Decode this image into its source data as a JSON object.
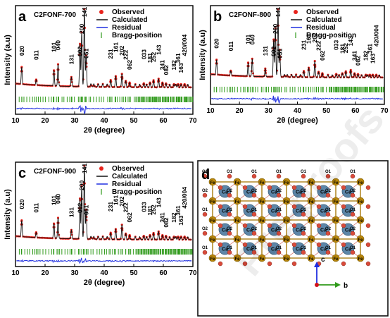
{
  "figure": {
    "watermark": "Pre-proofs",
    "colors": {
      "observed": "#e8231c",
      "calculated": "#111111",
      "residual": "#1f2fe0",
      "bragg": "#2f9a1a",
      "fe": "#b8860b",
      "ca": "#5d86a8",
      "o": "#d84a3a",
      "bond": "#b38a2a"
    }
  },
  "panels": [
    {
      "letter": "a",
      "sample": "C2FONF-700",
      "legend": [
        "Observed",
        "Calculated",
        "Residual",
        "Bragg-position"
      ],
      "ylabel": "Intensity (a.u)",
      "xlabel": "2θ (degree)",
      "xticks": [
        "10",
        "20",
        "30",
        "40",
        "50",
        "60",
        "70"
      ]
    },
    {
      "letter": "b",
      "sample": "C2FONF-800",
      "legend": [
        "Observed",
        "Calculated",
        "Residual",
        "Bragg-position"
      ],
      "ylabel": "Intensity (a.u)",
      "xlabel": "2θ (degree)",
      "xticks": [
        "10",
        "20",
        "30",
        "40",
        "50",
        "60",
        "70"
      ]
    },
    {
      "letter": "c",
      "sample": "C2FONF-900",
      "legend": [
        "Observed",
        "Calculated",
        "Residual",
        "Bragg-position"
      ],
      "ylabel": "Intensity (a.u)",
      "xlabel": "2θ (degree)",
      "xticks": [
        "10",
        "20",
        "30",
        "40",
        "50",
        "60",
        "70"
      ]
    }
  ],
  "structure": {
    "letter": "d",
    "axis_c": "c",
    "axis_b": "b",
    "atom_fe": "Fe",
    "atom_ca": "Ca",
    "atom_o1": "O1",
    "atom_o2": "O2"
  },
  "chart_data": [
    {
      "type": "line",
      "title": "C2FONF-700",
      "xlabel": "2θ (degree)",
      "ylabel": "Intensity (a.u)",
      "xlim": [
        10,
        70
      ],
      "series": [
        {
          "name": "Observed"
        },
        {
          "name": "Calculated"
        },
        {
          "name": "Residual"
        },
        {
          "name": "Bragg-position"
        }
      ],
      "peaks": [
        {
          "hkl": "020",
          "x": 12.1,
          "h": 0.22
        },
        {
          "hkl": "011",
          "x": 17.0,
          "h": 0.07
        },
        {
          "hkl": "101",
          "x": 23.0,
          "h": 0.2
        },
        {
          "hkl": "040",
          "x": 24.4,
          "h": 0.28
        },
        {
          "hkl": "131",
          "x": 28.9,
          "h": 0.12
        },
        {
          "hkl": "002",
          "x": 31.8,
          "h": 0.55
        },
        {
          "hkl": "200",
          "x": 32.4,
          "h": 0.7
        },
        {
          "hkl": "141",
          "x": 33.3,
          "h": 1.0
        },
        {
          "hkl": "051",
          "x": 33.9,
          "h": 0.4
        },
        {
          "hkl": "231",
          "x": 42.2,
          "h": 0.09
        },
        {
          "hkl": "161",
          "x": 43.9,
          "h": 0.14
        },
        {
          "hkl": "202",
          "x": 46.0,
          "h": 0.17
        },
        {
          "hkl": "222",
          "x": 47.3,
          "h": 0.08
        },
        {
          "hkl": "062",
          "x": 48.6,
          "h": 0.06
        },
        {
          "hkl": "033",
          "x": 53.4,
          "h": 0.05
        },
        {
          "hkl": "181",
          "x": 55.5,
          "h": 0.06
        },
        {
          "hkl": "252",
          "x": 56.7,
          "h": 0.09
        },
        {
          "hkl": "143",
          "x": 58.4,
          "h": 0.11
        },
        {
          "hkl": "341",
          "x": 59.7,
          "h": 0.06
        },
        {
          "hkl": "082",
          "x": 60.9,
          "h": 0.05
        },
        {
          "hkl": "182",
          "x": 63.6,
          "h": 0.04
        },
        {
          "hkl": "361",
          "x": 65.0,
          "h": 0.04
        },
        {
          "hkl": "163",
          "x": 66.0,
          "h": 0.04
        },
        {
          "hkl": "420/004",
          "x": 67.2,
          "h": 0.04
        }
      ]
    },
    {
      "type": "line",
      "title": "C2FONF-800",
      "xlabel": "2θ (degree)",
      "ylabel": "Intensity (a.u)",
      "xlim": [
        10,
        70
      ],
      "series": [
        {
          "name": "Observed"
        },
        {
          "name": "Calculated"
        },
        {
          "name": "Residual"
        },
        {
          "name": "Bragg-position"
        }
      ],
      "peaks": [
        {
          "hkl": "020",
          "x": 12.1,
          "h": 0.22
        },
        {
          "hkl": "011",
          "x": 17.0,
          "h": 0.07
        },
        {
          "hkl": "101",
          "x": 23.0,
          "h": 0.2
        },
        {
          "hkl": "040",
          "x": 24.4,
          "h": 0.26
        },
        {
          "hkl": "131",
          "x": 28.9,
          "h": 0.12
        },
        {
          "hkl": "002",
          "x": 31.8,
          "h": 0.55
        },
        {
          "hkl": "200",
          "x": 32.4,
          "h": 0.72
        },
        {
          "hkl": "141",
          "x": 33.3,
          "h": 1.0
        },
        {
          "hkl": "051",
          "x": 33.9,
          "h": 0.4
        },
        {
          "hkl": "231",
          "x": 42.2,
          "h": 0.09
        },
        {
          "hkl": "161",
          "x": 43.9,
          "h": 0.14
        },
        {
          "hkl": "202",
          "x": 46.0,
          "h": 0.24
        },
        {
          "hkl": "222",
          "x": 47.3,
          "h": 0.08
        },
        {
          "hkl": "062",
          "x": 48.6,
          "h": 0.06
        },
        {
          "hkl": "033",
          "x": 53.4,
          "h": 0.05
        },
        {
          "hkl": "181",
          "x": 55.5,
          "h": 0.06
        },
        {
          "hkl": "252",
          "x": 56.7,
          "h": 0.09
        },
        {
          "hkl": "143",
          "x": 58.4,
          "h": 0.11
        },
        {
          "hkl": "341",
          "x": 59.7,
          "h": 0.06
        },
        {
          "hkl": "082",
          "x": 60.9,
          "h": 0.05
        },
        {
          "hkl": "182",
          "x": 63.6,
          "h": 0.04
        },
        {
          "hkl": "361",
          "x": 65.0,
          "h": 0.04
        },
        {
          "hkl": "163",
          "x": 66.0,
          "h": 0.04
        },
        {
          "hkl": "420/004",
          "x": 67.2,
          "h": 0.04
        }
      ]
    },
    {
      "type": "line",
      "title": "C2FONF-900",
      "xlabel": "2θ (degree)",
      "ylabel": "Intensity (a.u)",
      "xlim": [
        10,
        70
      ],
      "series": [
        {
          "name": "Observed"
        },
        {
          "name": "Calculated"
        },
        {
          "name": "Residual"
        },
        {
          "name": "Bragg-position"
        }
      ],
      "peaks": [
        {
          "hkl": "020",
          "x": 12.1,
          "h": 0.22
        },
        {
          "hkl": "011",
          "x": 17.0,
          "h": 0.07
        },
        {
          "hkl": "101",
          "x": 23.0,
          "h": 0.2
        },
        {
          "hkl": "040",
          "x": 24.4,
          "h": 0.28
        },
        {
          "hkl": "131",
          "x": 28.9,
          "h": 0.12
        },
        {
          "hkl": "002",
          "x": 31.8,
          "h": 0.55
        },
        {
          "hkl": "200",
          "x": 32.4,
          "h": 0.72
        },
        {
          "hkl": "141",
          "x": 33.3,
          "h": 1.0
        },
        {
          "hkl": "051",
          "x": 33.9,
          "h": 0.4
        },
        {
          "hkl": "231",
          "x": 42.2,
          "h": 0.09
        },
        {
          "hkl": "161",
          "x": 43.9,
          "h": 0.14
        },
        {
          "hkl": "202",
          "x": 46.0,
          "h": 0.2
        },
        {
          "hkl": "222",
          "x": 47.3,
          "h": 0.08
        },
        {
          "hkl": "062",
          "x": 48.6,
          "h": 0.06
        },
        {
          "hkl": "033",
          "x": 53.4,
          "h": 0.05
        },
        {
          "hkl": "181",
          "x": 55.5,
          "h": 0.06
        },
        {
          "hkl": "252",
          "x": 56.7,
          "h": 0.09
        },
        {
          "hkl": "143",
          "x": 58.4,
          "h": 0.11
        },
        {
          "hkl": "341",
          "x": 59.7,
          "h": 0.06
        },
        {
          "hkl": "082",
          "x": 60.9,
          "h": 0.05
        },
        {
          "hkl": "182",
          "x": 63.6,
          "h": 0.04
        },
        {
          "hkl": "361",
          "x": 65.0,
          "h": 0.04
        },
        {
          "hkl": "163",
          "x": 66.0,
          "h": 0.04
        },
        {
          "hkl": "420/004",
          "x": 67.2,
          "h": 0.04
        }
      ]
    }
  ]
}
